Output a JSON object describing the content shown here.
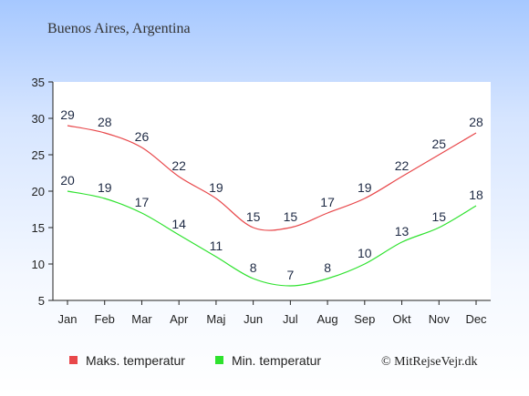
{
  "chart_data": {
    "type": "line",
    "title": "Buenos Aires, Argentina",
    "categories": [
      "Jan",
      "Feb",
      "Mar",
      "Apr",
      "Maj",
      "Jun",
      "Jul",
      "Aug",
      "Sep",
      "Okt",
      "Nov",
      "Dec"
    ],
    "series": [
      {
        "name": "Maks. temperatur",
        "color": "#e8474a",
        "values": [
          29,
          28,
          26,
          22,
          19,
          15,
          15,
          17,
          19,
          22,
          25,
          28
        ]
      },
      {
        "name": "Min. temperatur",
        "color": "#2ee22e",
        "values": [
          20,
          19,
          17,
          14,
          11,
          8,
          7,
          8,
          10,
          13,
          15,
          18
        ]
      }
    ],
    "ylim": [
      5,
      35
    ],
    "yticks": [
      5,
      10,
      15,
      20,
      25,
      30,
      35
    ],
    "grid": false,
    "legend_position": "bottom-left",
    "credit": "© MitRejseVejr.dk"
  }
}
